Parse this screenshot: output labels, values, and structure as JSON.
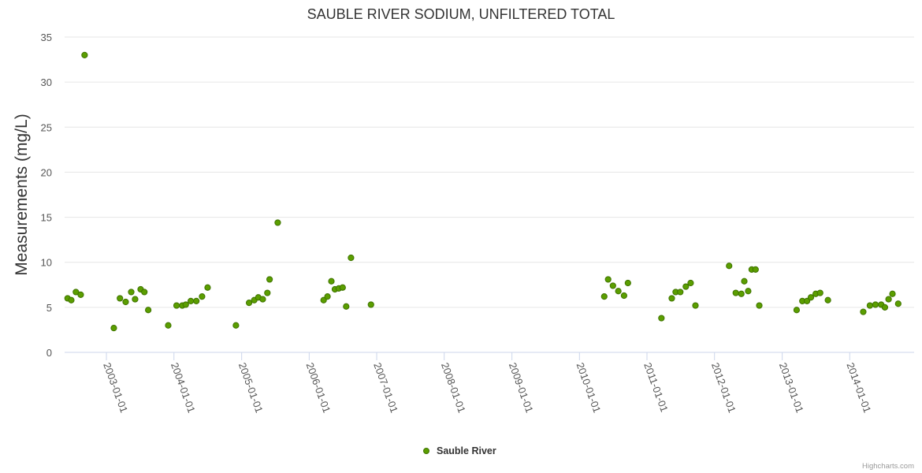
{
  "colors": {
    "point_fill": "#5b9e00",
    "point_stroke": "#3f7300",
    "grid": "#e6e6e6",
    "axis_text": "#555555",
    "title": "#333333"
  },
  "credits": "Highcharts.com",
  "chart_data": {
    "type": "scatter",
    "title": "SAUBLE RIVER SODIUM, UNFILTERED TOTAL",
    "xlabel": "",
    "ylabel": "Measurements (mg/L)",
    "ylim": [
      0,
      35
    ],
    "yticks": [
      0,
      5,
      10,
      15,
      20,
      25,
      30,
      35
    ],
    "xlim": [
      "2002-05-20",
      "2014-12-15"
    ],
    "xtick_labels": [
      "2003-01-01",
      "2004-01-01",
      "2005-01-01",
      "2006-01-01",
      "2007-01-01",
      "2008-01-01",
      "2009-01-01",
      "2010-01-01",
      "2011-01-01",
      "2012-01-01",
      "2013-01-01",
      "2014-01-01"
    ],
    "legend": "bottom-center",
    "series": [
      {
        "name": "Sauble River",
        "points": [
          [
            "2002-06-05",
            6.0
          ],
          [
            "2002-06-25",
            5.8
          ],
          [
            "2002-07-20",
            6.7
          ],
          [
            "2002-08-15",
            6.4
          ],
          [
            "2002-09-05",
            33.0
          ],
          [
            "2003-02-10",
            2.7
          ],
          [
            "2003-03-15",
            6.0
          ],
          [
            "2003-04-15",
            5.6
          ],
          [
            "2003-05-15",
            6.7
          ],
          [
            "2003-06-05",
            5.9
          ],
          [
            "2003-07-05",
            7.0
          ],
          [
            "2003-07-25",
            6.7
          ],
          [
            "2003-08-15",
            4.7
          ],
          [
            "2003-12-01",
            3.0
          ],
          [
            "2004-01-15",
            5.2
          ],
          [
            "2004-02-15",
            5.2
          ],
          [
            "2004-03-05",
            5.3
          ],
          [
            "2004-04-01",
            5.7
          ],
          [
            "2004-05-01",
            5.7
          ],
          [
            "2004-06-01",
            6.2
          ],
          [
            "2004-07-01",
            7.2
          ],
          [
            "2004-12-01",
            3.0
          ],
          [
            "2005-02-10",
            5.5
          ],
          [
            "2005-03-10",
            5.8
          ],
          [
            "2005-04-01",
            6.1
          ],
          [
            "2005-04-25",
            5.9
          ],
          [
            "2005-05-20",
            6.6
          ],
          [
            "2005-06-01",
            8.1
          ],
          [
            "2005-07-15",
            14.4
          ],
          [
            "2006-03-20",
            5.8
          ],
          [
            "2006-04-10",
            6.2
          ],
          [
            "2006-05-01",
            7.9
          ],
          [
            "2006-05-20",
            7.0
          ],
          [
            "2006-06-10",
            7.1
          ],
          [
            "2006-07-01",
            7.2
          ],
          [
            "2006-07-20",
            5.1
          ],
          [
            "2006-08-15",
            10.5
          ],
          [
            "2006-12-01",
            5.3
          ],
          [
            "2010-05-15",
            6.2
          ],
          [
            "2010-06-05",
            8.1
          ],
          [
            "2010-07-01",
            7.4
          ],
          [
            "2010-07-30",
            6.8
          ],
          [
            "2010-08-30",
            6.3
          ],
          [
            "2010-09-20",
            7.7
          ],
          [
            "2011-03-20",
            3.8
          ],
          [
            "2011-05-15",
            6.0
          ],
          [
            "2011-06-05",
            6.7
          ],
          [
            "2011-06-30",
            6.7
          ],
          [
            "2011-07-30",
            7.3
          ],
          [
            "2011-08-25",
            7.7
          ],
          [
            "2011-09-20",
            5.2
          ],
          [
            "2012-03-20",
            9.6
          ],
          [
            "2012-04-25",
            6.6
          ],
          [
            "2012-05-25",
            6.5
          ],
          [
            "2012-06-10",
            7.9
          ],
          [
            "2012-07-01",
            6.8
          ],
          [
            "2012-07-20",
            9.2
          ],
          [
            "2012-08-10",
            9.2
          ],
          [
            "2012-08-30",
            5.2
          ],
          [
            "2013-03-20",
            4.7
          ],
          [
            "2013-04-20",
            5.7
          ],
          [
            "2013-05-15",
            5.7
          ],
          [
            "2013-06-05",
            6.1
          ],
          [
            "2013-07-01",
            6.5
          ],
          [
            "2013-07-25",
            6.6
          ],
          [
            "2013-09-05",
            5.8
          ],
          [
            "2014-03-15",
            4.5
          ],
          [
            "2014-04-20",
            5.2
          ],
          [
            "2014-05-20",
            5.3
          ],
          [
            "2014-06-20",
            5.3
          ],
          [
            "2014-07-10",
            5.0
          ],
          [
            "2014-07-30",
            5.9
          ],
          [
            "2014-08-20",
            6.5
          ],
          [
            "2014-09-20",
            5.4
          ]
        ]
      }
    ]
  }
}
